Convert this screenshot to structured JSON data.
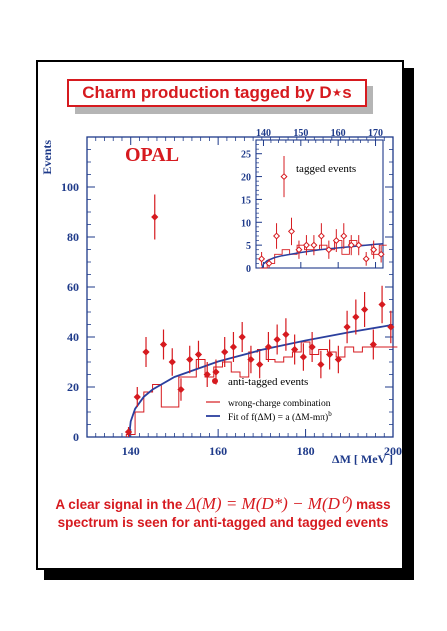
{
  "title": "Charm production tagged by D⋆s",
  "caption": {
    "prefix": "A clear signal in the",
    "math": "Δ(M) = M(D*) − M(D⁰)",
    "suffix": "mass spectrum is seen for anti-tagged and tagged events"
  },
  "colors": {
    "red": "#d61a1f",
    "blue": "#2b3f9e",
    "frame": "#1e3a8a"
  },
  "chart_data": [
    {
      "type": "scatter",
      "title": "OPAL",
      "xlabel": "ΔM [ MeV ]",
      "ylabel": "Events",
      "xlim": [
        130,
        200
      ],
      "ylim": [
        0,
        120
      ],
      "xticks": [
        140,
        160,
        180,
        200
      ],
      "yticks": [
        0,
        20,
        40,
        60,
        80,
        100
      ],
      "series": [
        {
          "name": "anti-tagged events",
          "marker": "filled-diamond",
          "x": [
            139.5,
            141.5,
            143.5,
            145.5,
            147.5,
            149.5,
            151.5,
            153.5,
            155.5,
            157.5,
            159.5,
            161.5,
            163.5,
            165.5,
            167.5,
            169.5,
            171.5,
            173.5,
            175.5,
            177.5,
            179.5,
            181.5,
            183.5,
            185.5,
            187.5,
            189.5,
            191.5,
            193.5,
            195.5,
            197.5,
            199.5
          ],
          "y": [
            2,
            16,
            34,
            88,
            37,
            30,
            19,
            31,
            33,
            25,
            26,
            34,
            36,
            40,
            31,
            29,
            36,
            39,
            41,
            35,
            32,
            36,
            29,
            33,
            31,
            44,
            48,
            51,
            37,
            53,
            44
          ],
          "err": [
            2,
            4,
            6,
            9,
            6,
            5.5,
            4.5,
            5.5,
            5.5,
            5,
            5,
            6,
            6,
            6,
            5.5,
            5.5,
            6,
            6,
            6.5,
            6,
            5.5,
            6,
            5.5,
            6,
            5.5,
            6.5,
            7,
            7,
            6,
            7.5,
            6.5
          ]
        },
        {
          "name": "wrong-charge combination",
          "style": "histogram",
          "edges": [
            139,
            141,
            143,
            145,
            147,
            149,
            151,
            153,
            155,
            157,
            159,
            161,
            163,
            165,
            167,
            169,
            171,
            173,
            175,
            177,
            179,
            181,
            183,
            185,
            187,
            189,
            191,
            193,
            195,
            197,
            199,
            201
          ],
          "values": [
            1,
            10,
            18,
            21,
            12,
            12,
            24,
            24,
            31,
            24,
            28,
            30,
            26,
            24,
            34,
            35,
            31,
            30,
            32,
            34,
            38,
            33,
            35,
            34,
            32,
            36,
            34,
            36,
            36,
            36,
            36
          ]
        },
        {
          "name": "Fit of f(ΔM) = a (ΔM-mπ)b",
          "style": "curve",
          "x": [
            139.6,
            140,
            141,
            143,
            145,
            150,
            160,
            170,
            180,
            190,
            200
          ],
          "y": [
            0,
            6.2,
            11.3,
            16.1,
            19.0,
            24.0,
            30.2,
            34.9,
            38.6,
            41.9,
            44.9
          ]
        }
      ],
      "legend": [
        "anti-tagged events",
        "wrong-charge combination",
        "Fit of f(ΔM) = a (ΔM-mπ)b"
      ]
    },
    {
      "type": "scatter",
      "xlim": [
        138,
        172
      ],
      "ylim": [
        0,
        28
      ],
      "xticks": [
        140,
        150,
        160,
        170
      ],
      "yticks": [
        0,
        5,
        10,
        15,
        20,
        25
      ],
      "series": [
        {
          "name": "tagged events",
          "marker": "open-diamond",
          "x": [
            139.5,
            141.5,
            143.5,
            145.5,
            147.5,
            149.5,
            151.5,
            153.5,
            155.5,
            157.5,
            159.5,
            161.5,
            163.5,
            165.5,
            167.5,
            169.5,
            171.5
          ],
          "y": [
            2,
            1,
            7,
            20,
            8,
            4,
            5,
            5,
            7,
            4,
            6,
            7,
            5,
            5,
            2,
            4,
            3
          ],
          "err": [
            1.5,
            1,
            2.8,
            4.5,
            3,
            2,
            2.2,
            2.2,
            2.8,
            2,
            2.5,
            2.8,
            2.2,
            2.2,
            1.5,
            2,
            1.8
          ]
        },
        {
          "name": "wrong-charge combination",
          "style": "histogram",
          "edges": [
            139,
            141,
            143,
            145,
            147,
            149,
            151,
            153,
            155,
            157,
            159,
            161,
            163,
            165,
            167,
            169,
            171,
            173
          ],
          "values": [
            0,
            1,
            3,
            4,
            3,
            5,
            4,
            4,
            5,
            4,
            6,
            3,
            6,
            5,
            5,
            3,
            5
          ]
        },
        {
          "name": "fit",
          "style": "curve",
          "x": [
            139.6,
            140,
            141,
            143,
            145,
            150,
            155,
            160,
            165,
            170,
            172
          ],
          "y": [
            0,
            0.9,
            1.6,
            2.3,
            2.7,
            3.4,
            4.0,
            4.4,
            4.8,
            5.2,
            5.3
          ]
        }
      ]
    }
  ]
}
